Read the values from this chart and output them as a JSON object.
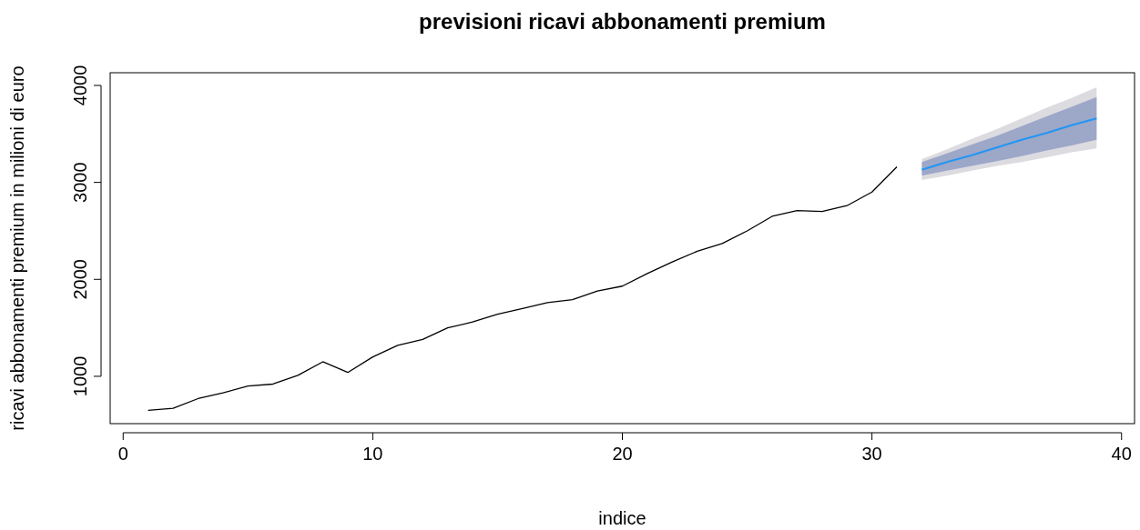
{
  "chart_data": {
    "type": "line",
    "title": "previsioni ricavi abbonamenti premium",
    "xlabel": "indice",
    "ylabel": "ricavi abbonamenti premium in milioni di euro",
    "xlim": [
      -0.52,
      40.52
    ],
    "ylim": [
      512,
      4131
    ],
    "xticks": [
      0,
      10,
      20,
      30,
      40
    ],
    "yticks": [
      1000,
      2000,
      3000,
      4000
    ],
    "grid": false,
    "series": [
      {
        "color": "#000000",
        "x": [
          1,
          2,
          3,
          4,
          5,
          6,
          7,
          8,
          9,
          10,
          11,
          12,
          13,
          14,
          15,
          16,
          17,
          18,
          19,
          20,
          21,
          22,
          23,
          24,
          25,
          26,
          27,
          28,
          29,
          30,
          31
        ],
        "values": [
          650,
          670,
          770,
          830,
          900,
          920,
          1010,
          1150,
          1040,
          1200,
          1320,
          1380,
          1500,
          1560,
          1640,
          1700,
          1760,
          1790,
          1880,
          1930,
          2060,
          2180,
          2290,
          2370,
          2500,
          2650,
          2710,
          2700,
          2760,
          2900,
          3160
        ]
      },
      {
        "color": "#dbdbe0",
        "x": [
          32,
          33,
          34,
          35,
          36,
          37,
          38,
          39
        ],
        "values": [
          null,
          null,
          null,
          null,
          null,
          null,
          null,
          null
        ],
        "lower": [
          3025,
          3070,
          3120,
          3170,
          3210,
          3260,
          3310,
          3350
        ],
        "upper": [
          3240,
          3340,
          3450,
          3550,
          3660,
          3770,
          3870,
          3980
        ]
      },
      {
        "color": "#2196f3",
        "x": [
          32,
          33,
          34,
          35,
          36,
          37,
          38,
          39
        ],
        "values": [
          3130,
          3210,
          3280,
          3360,
          3440,
          3510,
          3590,
          3660
        ],
        "lower": [
          3070,
          3120,
          3170,
          3220,
          3270,
          3330,
          3380,
          3440
        ],
        "upper": [
          3210,
          3300,
          3390,
          3480,
          3580,
          3680,
          3780,
          3880
        ]
      }
    ]
  }
}
